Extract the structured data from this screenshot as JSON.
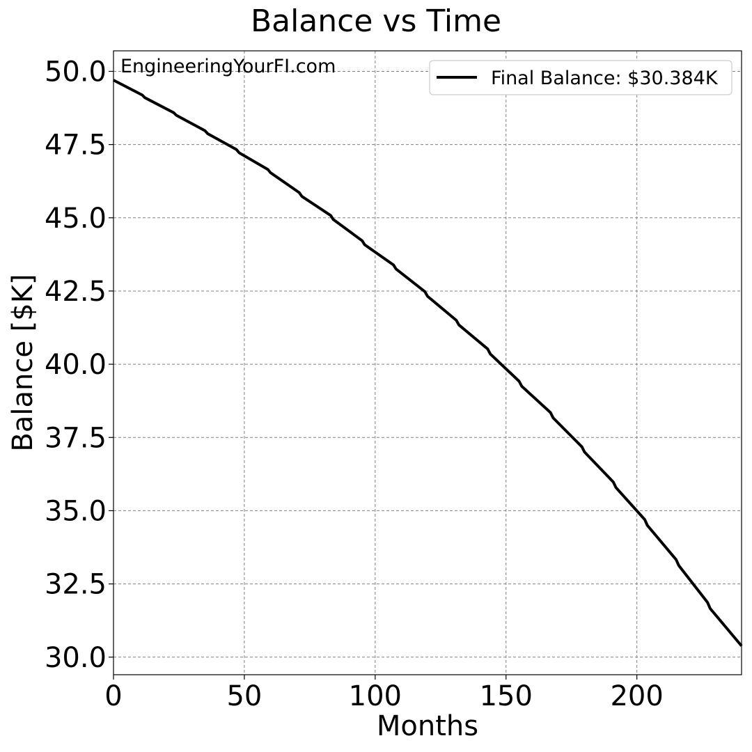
{
  "chart_data": {
    "type": "line",
    "title": "Balance vs Time",
    "xlabel": "Months",
    "ylabel": "Balance [$K]",
    "xlim": [
      0,
      240
    ],
    "ylim": [
      29.4,
      50.7
    ],
    "xticks": [
      0,
      50,
      100,
      150,
      200
    ],
    "yticks": [
      30.0,
      32.5,
      35.0,
      37.5,
      40.0,
      42.5,
      45.0,
      47.5,
      50.0
    ],
    "xtick_labels": [
      "0",
      "50",
      "100",
      "150",
      "200"
    ],
    "ytick_labels": [
      "30.0",
      "32.5",
      "35.0",
      "37.5",
      "40.0",
      "42.5",
      "45.0",
      "47.5",
      "50.0"
    ],
    "grid": true,
    "legend_position": "top-right",
    "annotation": "EngineeringYourFI.com",
    "series": [
      {
        "name": "Final Balance: $30.384K",
        "color": "#000000",
        "x": [
          0,
          11,
          12,
          23,
          24,
          35,
          36,
          47,
          48,
          59,
          60,
          71,
          72,
          83,
          84,
          95,
          96,
          107,
          108,
          119,
          120,
          131,
          132,
          143,
          144,
          155,
          156,
          167,
          168,
          179,
          180,
          191,
          192,
          203,
          204,
          215,
          216,
          227,
          228,
          240
        ],
        "y": [
          49.7,
          49.19,
          49.1,
          48.59,
          48.5,
          47.97,
          47.87,
          47.33,
          47.22,
          46.65,
          46.54,
          45.86,
          45.73,
          45.08,
          44.94,
          44.22,
          44.08,
          43.39,
          43.25,
          42.48,
          42.32,
          41.5,
          41.34,
          40.52,
          40.35,
          39.42,
          39.25,
          38.35,
          38.17,
          37.18,
          37.0,
          35.98,
          35.79,
          34.7,
          34.5,
          33.33,
          33.13,
          31.87,
          31.66,
          30.384
        ]
      }
    ]
  }
}
